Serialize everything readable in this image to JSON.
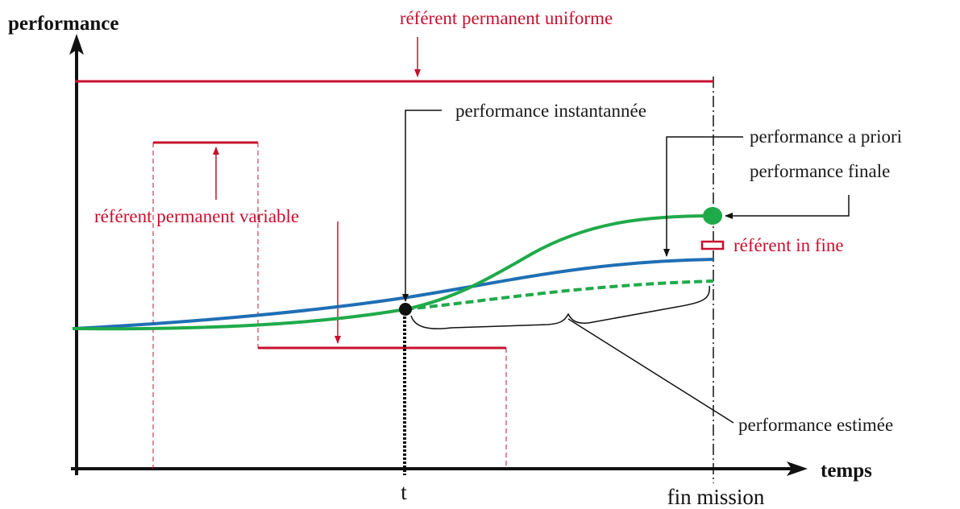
{
  "axes": {
    "y_title": "performance",
    "x_title": "temps",
    "tick_t": "t",
    "tick_end": "fin mission"
  },
  "labels": {
    "ref_uniform": "référent permanent uniforme",
    "ref_variable": "référent permanent variable",
    "perf_instant": "performance instantannée",
    "perf_apriori": "performance a priori",
    "perf_final": "performance finale",
    "ref_infine": "référent in fine",
    "perf_estimated": "performance estimée"
  },
  "colors": {
    "red": "#c8102e",
    "blue": "#1f6fb5",
    "green": "#1faa4a",
    "black": "#111111"
  }
}
